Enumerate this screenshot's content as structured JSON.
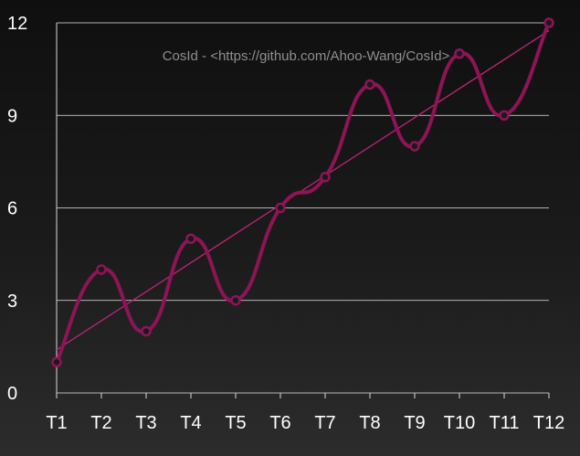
{
  "chart_data": {
    "type": "line",
    "title": "",
    "xlabel": "",
    "ylabel": "",
    "categories": [
      "T1",
      "T2",
      "T3",
      "T4",
      "T5",
      "T6",
      "T7",
      "T8",
      "T9",
      "T10",
      "T11",
      "T12"
    ],
    "series": [
      {
        "values": [
          1,
          4,
          2,
          5,
          3,
          6,
          7,
          10,
          8,
          11,
          9,
          12
        ],
        "color": "#8e1457",
        "smooth": true,
        "markers": "circle"
      }
    ],
    "trendline": {
      "type": "linear",
      "start": 1.4,
      "end": 11.75,
      "color": "#c0237a"
    },
    "ylim": [
      0,
      12
    ],
    "yticks": [
      "0",
      "3",
      "6",
      "9",
      "12"
    ],
    "grid": "horizontal",
    "legend": "none",
    "annotation": "CosId - <https://github.com/Ahoo-Wang/CosId>"
  }
}
